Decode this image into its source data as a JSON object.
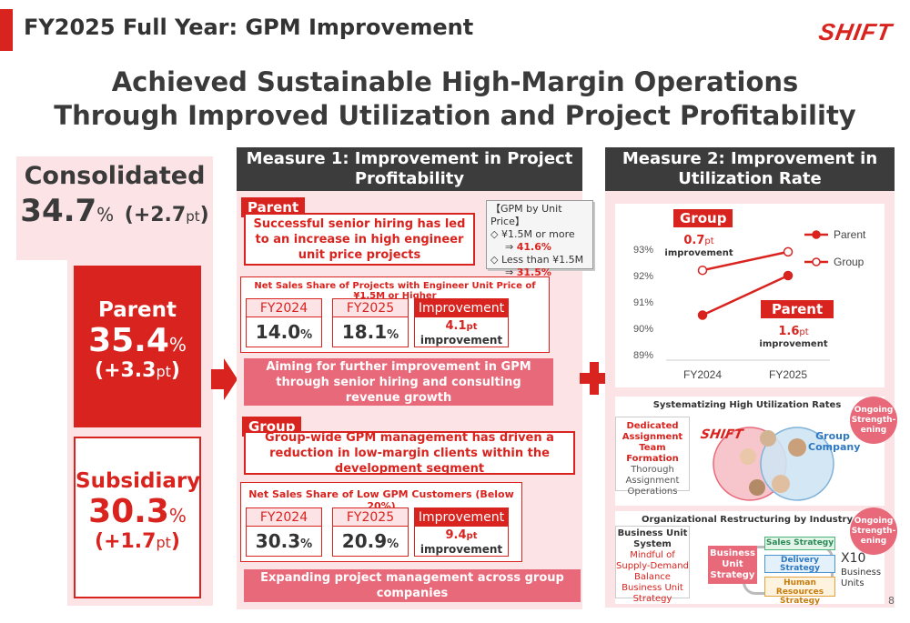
{
  "header": {
    "title": "FY2025 Full Year: GPM Improvement",
    "logo": "SHIFT",
    "headline_line1": "Achieved Sustainable High-Margin Operations",
    "headline_line2": "Through Improved Utilization and Project Profitability"
  },
  "left": {
    "consolidated_label": "Consolidated",
    "consolidated_value": "34.7",
    "consolidated_pct": "%",
    "consolidated_change": "(+2.7",
    "consolidated_change_unit": "pt",
    "consolidated_change_close": ")",
    "parent_label": "Parent",
    "parent_value": "35.4",
    "parent_pct": "%",
    "parent_change": "(+3.3",
    "parent_change_unit": "pt",
    "parent_change_close": ")",
    "subsidiary_label": "Subsidiary",
    "subsidiary_value": "30.3",
    "subsidiary_pct": "%",
    "subsidiary_change": "(+1.7",
    "subsidiary_change_unit": "pt",
    "subsidiary_change_close": ")"
  },
  "measure1": {
    "title": "Measure 1: Improvement in Project Profitability",
    "parent_tag": "Parent",
    "parent_text": "Successful senior hiring has led to an increase in high engineer unit price projects",
    "gpm_note_title": "【GPM by Unit Price】",
    "gpm_note_l1": "◇ ¥1.5M or more",
    "gpm_note_l2_arrow": "⇒",
    "gpm_note_l2_val": "41.6%",
    "gpm_note_l3": "◇ Less than ¥1.5M",
    "gpm_note_l4_arrow": "⇒",
    "gpm_note_l4_val": "31.5%",
    "table1_title": "Net Sales Share of Projects with Engineer Unit Price of ¥1.5M or Higher",
    "table1_h1": "FY2024",
    "table1_h2": "FY2025",
    "table1_h3": "Improvement",
    "table1_v1": "14.0",
    "table1_v1_unit": "%",
    "table1_v2": "18.1",
    "table1_v2_unit": "%",
    "table1_v3": "4.1",
    "table1_v3_unit": "pt",
    "table1_v3_sub": "improvement",
    "aim_text": "Aiming for further improvement in GPM through senior hiring and consulting revenue growth",
    "group_tag": "Group",
    "group_text": "Group-wide GPM management has driven a reduction in low-margin clients within the development segment",
    "table2_title": "Net Sales Share of Low GPM Customers (Below 20%)",
    "table2_h1": "FY2024",
    "table2_h2": "FY2025",
    "table2_h3": "Improvement",
    "table2_v1": "30.3",
    "table2_v1_unit": "%",
    "table2_v2": "20.9",
    "table2_v2_unit": "%",
    "table2_v3": "9.4",
    "table2_v3_unit": "pt",
    "table2_v3_sub": "improvement",
    "expand_text": "Expanding project management across group companies"
  },
  "measure2": {
    "title": "Measure 2: Improvement in Utilization Rate",
    "group_tag": "Group",
    "group_improve": "0.7",
    "group_improve_unit": "pt",
    "group_improve_sub": "improvement",
    "parent_tag": "Parent",
    "parent_improve": "1.6",
    "parent_improve_unit": "pt",
    "parent_improve_sub": "improvement",
    "legend_parent": "Parent",
    "legend_group": "Group",
    "systematizing_title": "Systematizing High Utilization Rates",
    "dedicated_title": "Dedicated Assignment Team Formation",
    "dedicated_sub": "Thorough Assignment Operations",
    "shift_logo": "SHIFT",
    "group_company": "Group Company",
    "ongoing1": "Ongoing Strength-ening",
    "org_title": "Organizational Restructuring by Industry",
    "ongoing2": "Ongoing Strength-ening",
    "bu_title": "Business Unit System",
    "bu_sub": "Mindful of Supply-Demand Balance Business Unit Strategy",
    "bu_strategy": "Business Unit Strategy",
    "sales_strategy": "Sales Strategy",
    "delivery_strategy": "Delivery Strategy",
    "hr_strategy": "Human Resources Strategy",
    "x10": "X10",
    "business_units": "Business Units"
  },
  "chart_data": {
    "type": "line",
    "categories": [
      "FY2024",
      "FY2025"
    ],
    "series": [
      {
        "name": "Parent",
        "values": [
          90.5,
          92.0
        ],
        "color": "#d9231e",
        "marker": "filled"
      },
      {
        "name": "Group",
        "values": [
          92.2,
          92.9
        ],
        "color": "#d9231e",
        "marker": "open"
      }
    ],
    "yticks": [
      "89%",
      "90%",
      "91%",
      "92%",
      "93%"
    ],
    "ylim": [
      89,
      93.5
    ],
    "legend": "right"
  },
  "page_number": "8",
  "colors": {
    "accent": "#d9231e",
    "pink": "#fce4e6",
    "dark": "#3c3c3c",
    "rose": "#e8697a"
  }
}
